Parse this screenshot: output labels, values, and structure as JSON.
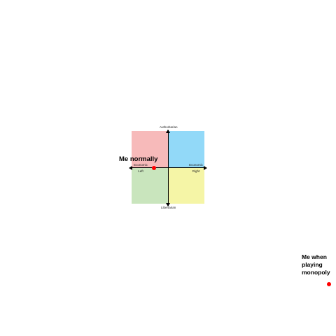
{
  "compass": {
    "axis_labels": {
      "top": "Authoritarian",
      "bottom": "Libertarian",
      "left_line1": "Economic",
      "left_line2": "Left",
      "right_line1": "Economic",
      "right_line2": "Right"
    },
    "quadrant_colors": {
      "authoritarian_left": "#f7baba",
      "authoritarian_right": "#92d9f8",
      "libertarian_left": "#c9e5bd",
      "libertarian_right": "#f5f5a6"
    }
  },
  "annotations": {
    "normal": "Me normally",
    "monopoly": "Me when playing monopoly"
  },
  "marker_color": "#ff0000"
}
